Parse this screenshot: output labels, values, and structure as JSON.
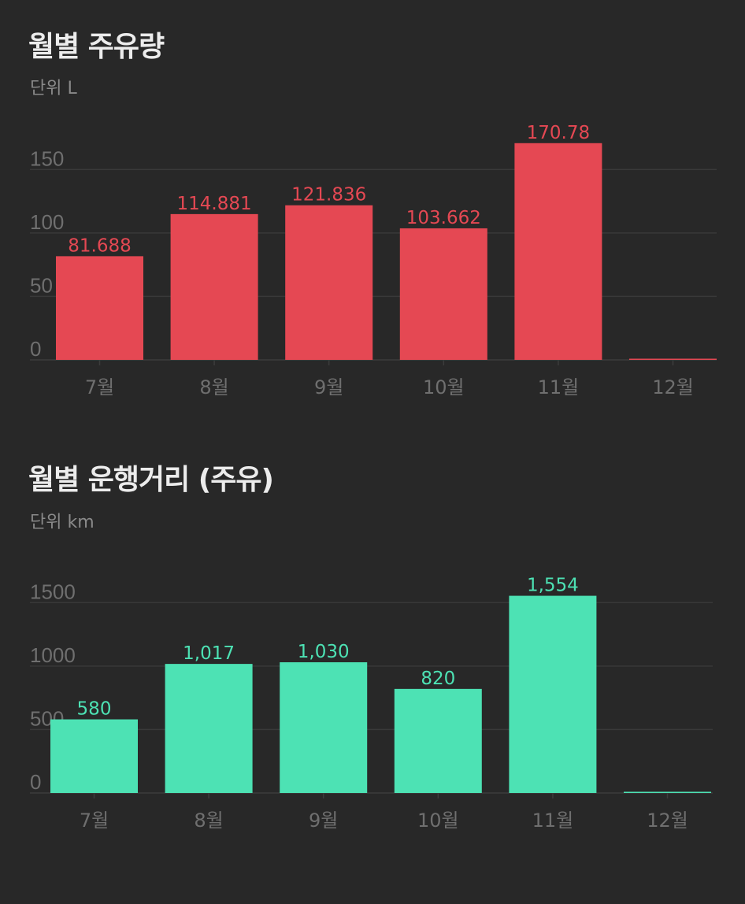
{
  "chart_data": [
    {
      "type": "bar",
      "title": "월별 주유량",
      "subtitle": "단위 L",
      "categories": [
        "7월",
        "8월",
        "9월",
        "10월",
        "11월",
        "12월"
      ],
      "values": [
        81.688,
        114.881,
        121.836,
        103.662,
        170.78,
        0
      ],
      "value_labels": [
        "81.688",
        "114.881",
        "121.836",
        "103.662",
        "170.78",
        ""
      ],
      "yticks": [
        0,
        50,
        100,
        150
      ],
      "ytick_labels": [
        "0",
        "50",
        "100",
        "150"
      ],
      "ylim": [
        0,
        175
      ],
      "grid": true,
      "color": "#e54853"
    },
    {
      "type": "bar",
      "title": "월별 운행거리 (주유)",
      "subtitle": "단위 km",
      "categories": [
        "7월",
        "8월",
        "9월",
        "10월",
        "11월",
        "12월"
      ],
      "values": [
        580,
        1017,
        1030,
        820,
        1554,
        0
      ],
      "value_labels": [
        "580",
        "1,017",
        "1,030",
        "820",
        "1,554",
        ""
      ],
      "yticks": [
        0,
        500,
        1000,
        1500
      ],
      "ytick_labels": [
        "0",
        "500",
        "1000",
        "1500"
      ],
      "ylim": [
        0,
        1750
      ],
      "grid": true,
      "color": "#4de2b4"
    }
  ]
}
